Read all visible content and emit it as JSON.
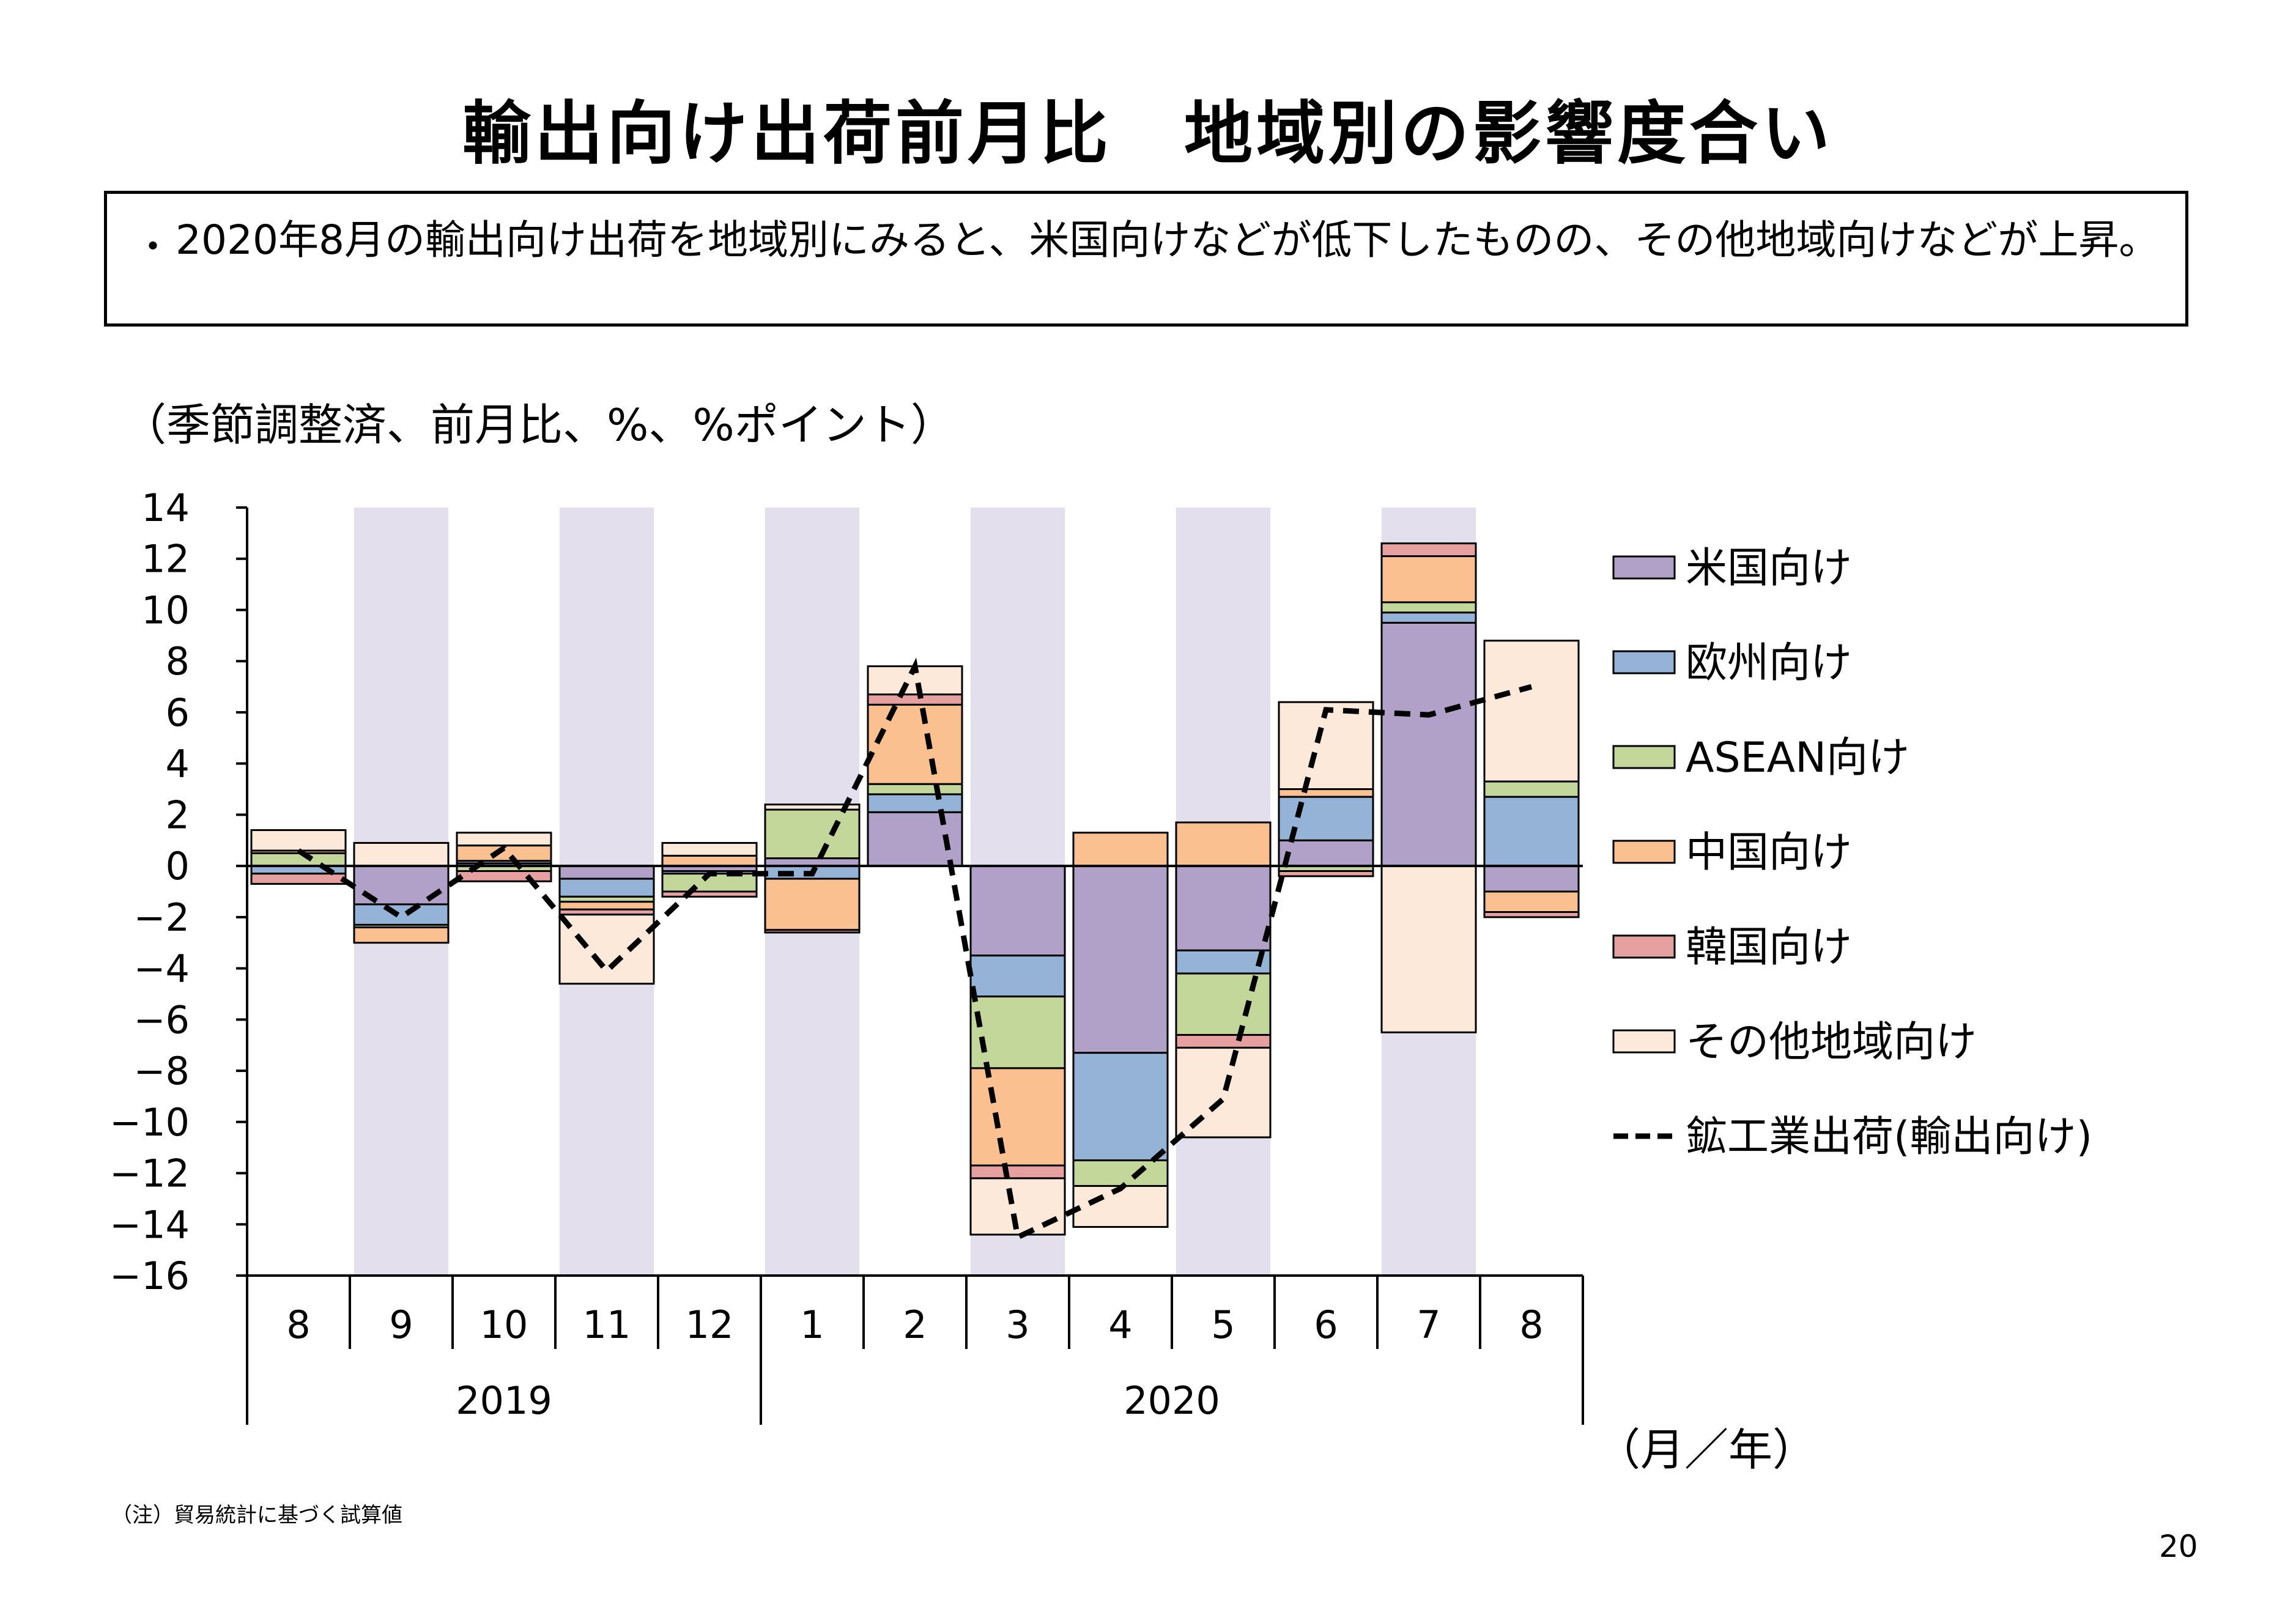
{
  "page": {
    "title": "輸出向け出荷前月比　地域別の影響度合い",
    "summary_bullet": "・",
    "summary": "2020年8月の輸出向け出荷を地域別にみると、米国向けなどが低下したものの、その他地域向けなどが上昇。",
    "unit_note": "（季節調整済、前月比、%、%ポイント）",
    "axis_unit": "（月／年）",
    "footnote": "（注）貿易統計に基づく試算値",
    "page_number": "20"
  },
  "colors": {
    "us": "#b1a0c7",
    "europe": "#95b3d7",
    "asean": "#c4d79b",
    "china": "#fac090",
    "korea": "#e6a0a0",
    "other": "#fde9d9",
    "shade": "#e4dfec",
    "line": "#000000"
  },
  "chart_data": {
    "type": "bar",
    "stacked": true,
    "categories": [
      "8",
      "9",
      "10",
      "11",
      "12",
      "1",
      "2",
      "3",
      "4",
      "5",
      "6",
      "7",
      "8"
    ],
    "year_groups": [
      {
        "label": "2019",
        "start": 0,
        "end": 4
      },
      {
        "label": "2020",
        "start": 5,
        "end": 12
      }
    ],
    "ylim": [
      -16,
      14
    ],
    "yticks": [
      14,
      12,
      10,
      8,
      6,
      4,
      2,
      0,
      -2,
      -4,
      -6,
      -8,
      -10,
      -12,
      -14,
      -16
    ],
    "shaded_categories": [
      1,
      3,
      5,
      7,
      9,
      11
    ],
    "series": [
      {
        "name": "米国向け",
        "key": "us",
        "values": [
          0,
          -1.5,
          0.1,
          -0.5,
          -0.2,
          0.3,
          2.1,
          -3.5,
          -7.3,
          -3.3,
          1.0,
          9.5,
          -1.0
        ]
      },
      {
        "name": "欧州向け",
        "key": "europe",
        "values": [
          -0.3,
          -0.8,
          0.1,
          -0.7,
          -0.1,
          -0.5,
          0.7,
          -1.6,
          -4.2,
          -0.9,
          1.7,
          0.4,
          2.7
        ]
      },
      {
        "name": "ASEAN向け",
        "key": "asean",
        "values": [
          0.5,
          -0.1,
          -0.2,
          -0.2,
          -0.7,
          1.9,
          0.4,
          -2.8,
          -1.0,
          -2.4,
          -0.2,
          0.4,
          0.6
        ]
      },
      {
        "name": "中国向け",
        "key": "china",
        "values": [
          0.1,
          -0.6,
          0.6,
          -0.3,
          0.4,
          -2.0,
          3.1,
          -3.8,
          1.3,
          1.7,
          0.3,
          1.8,
          -0.8
        ]
      },
      {
        "name": "韓国向け",
        "key": "korea",
        "values": [
          -0.4,
          0.0,
          -0.4,
          -0.2,
          -0.2,
          -0.1,
          0.4,
          -0.5,
          0.0,
          -0.5,
          -0.2,
          0.5,
          -0.2
        ]
      },
      {
        "name": "その他地域向け",
        "key": "other",
        "values": [
          0.8,
          0.9,
          0.5,
          -2.7,
          0.5,
          0.2,
          1.1,
          -2.2,
          -1.6,
          -3.5,
          3.4,
          -6.5,
          5.5
        ]
      }
    ],
    "line": {
      "name": "鉱工業出荷(輸出向け)",
      "key": "line",
      "values": [
        0.6,
        -2.0,
        0.7,
        -4.1,
        -0.3,
        -0.3,
        7.8,
        -14.5,
        -12.6,
        -9.1,
        6.1,
        5.9,
        7.0
      ]
    },
    "legend_position": "right"
  }
}
